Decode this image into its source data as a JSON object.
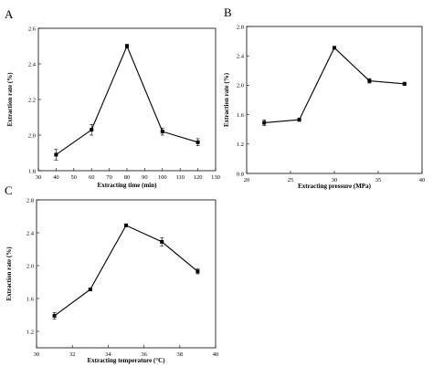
{
  "chart_data": [
    {
      "panel": "A",
      "type": "line",
      "xlabel": "Extracting time (min)",
      "ylabel": "Extraction rate (%)",
      "xlim": [
        30,
        130
      ],
      "ylim": [
        1.8,
        2.6
      ],
      "xticks": [
        30,
        40,
        50,
        60,
        70,
        80,
        90,
        100,
        110,
        120,
        130
      ],
      "yticks": [
        1.8,
        2.0,
        2.2,
        2.4,
        2.6
      ],
      "x": [
        40,
        60,
        80,
        100,
        120
      ],
      "y": [
        1.89,
        2.03,
        2.5,
        2.02,
        1.96
      ],
      "err": [
        0.03,
        0.03,
        0.01,
        0.02,
        0.02
      ]
    },
    {
      "panel": "B",
      "type": "line",
      "xlabel": "Extracting pressure (MPa)",
      "ylabel": "Extraction rate (%)",
      "xlim": [
        20,
        40
      ],
      "ylim": [
        0.8,
        2.8
      ],
      "xticks": [
        20,
        25,
        30,
        35,
        40
      ],
      "yticks": [
        0.8,
        1.2,
        1.6,
        2.0,
        2.4,
        2.8
      ],
      "x": [
        22,
        26,
        30,
        34,
        38
      ],
      "y": [
        1.49,
        1.53,
        2.51,
        2.06,
        2.02
      ],
      "err": [
        0.04,
        0.02,
        0.01,
        0.03,
        0.02
      ]
    },
    {
      "panel": "C",
      "type": "line",
      "xlabel": "Extracting temperature (°C)",
      "ylabel": "Extraction rate (%)",
      "xlim": [
        30,
        40
      ],
      "ylim": [
        1.0,
        2.8
      ],
      "xticks": [
        30,
        32,
        34,
        36,
        38,
        40
      ],
      "yticks": [
        1.2,
        1.6,
        2.0,
        2.4,
        2.8
      ],
      "x": [
        31,
        33,
        35,
        37,
        39
      ],
      "y": [
        1.39,
        1.71,
        2.49,
        2.29,
        1.93
      ],
      "err": [
        0.04,
        0.01,
        0.01,
        0.05,
        0.03
      ]
    }
  ]
}
